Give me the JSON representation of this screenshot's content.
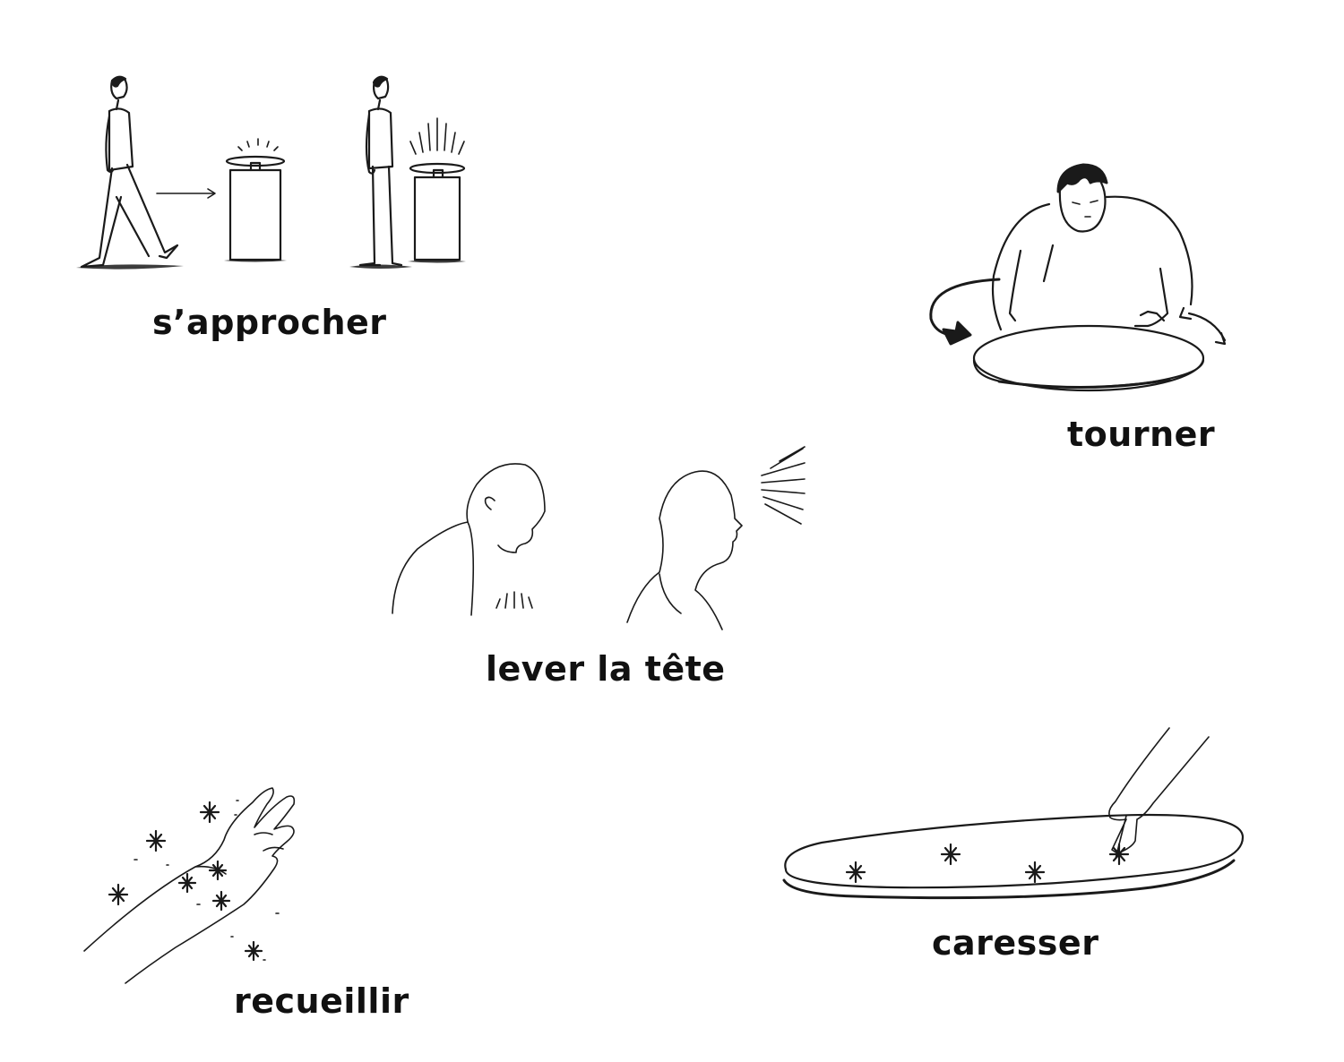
{
  "labels": {
    "approach": "s’approcher",
    "turn": "tourner",
    "raise_head": "lever la tête",
    "collect": "recueillir",
    "caress": "caresser"
  },
  "colors": {
    "ink": "#1a1a1a",
    "background": "#ffffff"
  }
}
